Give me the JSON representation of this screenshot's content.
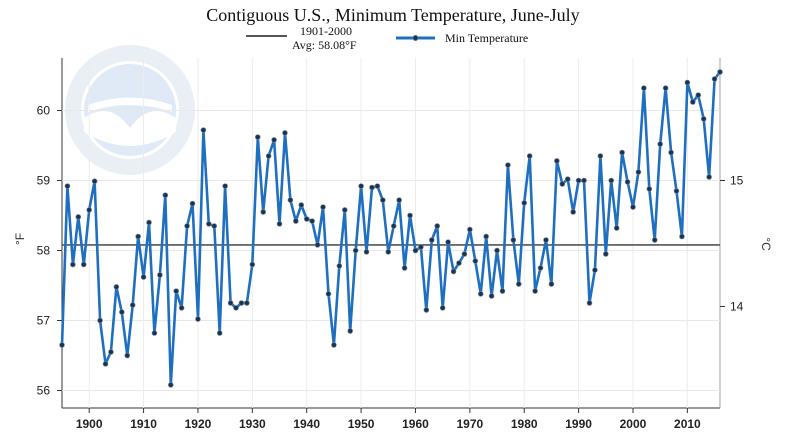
{
  "chart_data": {
    "type": "line",
    "title": "Contiguous U.S., Minimum Temperature, June-July",
    "ylabel_left": "°F",
    "ylabel_right": "°C",
    "xlabel": "",
    "xlim": [
      1895,
      2016
    ],
    "ylim": [
      55.75,
      60.75
    ],
    "x_ticks": [
      1900,
      1910,
      1920,
      1930,
      1940,
      1950,
      1960,
      1970,
      1980,
      1990,
      2000,
      2010
    ],
    "x_tick_labels": [
      "1900",
      "1910",
      "1920",
      "1930",
      "1940",
      "1950",
      "1960",
      "1970",
      "1980",
      "1990",
      "2000",
      "2010"
    ],
    "y_ticks": [
      56,
      57,
      58,
      59,
      60
    ],
    "y_tick_labels": [
      "56",
      "57",
      "58",
      "59",
      "60"
    ],
    "y2_ticks_f": [
      57.2,
      59.0
    ],
    "y2_tick_labels": [
      "14",
      "15"
    ],
    "grid": true,
    "legend": {
      "average_label_line1": "1901-2000",
      "average_label_line2": "Avg: 58.08°F",
      "series_label": "Min Temperature"
    },
    "average": 58.08,
    "colors": {
      "series": "#1f6fc0",
      "average": "#555555",
      "marker": "#1a3350"
    },
    "watermark": "NOAA — National Oceanic and Atmospheric Administration, U.S. Department of Commerce",
    "series": [
      {
        "name": "Min Temperature",
        "x": [
          1895,
          1896,
          1897,
          1898,
          1899,
          1900,
          1901,
          1902,
          1903,
          1904,
          1905,
          1906,
          1907,
          1908,
          1909,
          1910,
          1911,
          1912,
          1913,
          1914,
          1915,
          1916,
          1917,
          1918,
          1919,
          1920,
          1921,
          1922,
          1923,
          1924,
          1925,
          1926,
          1927,
          1928,
          1929,
          1930,
          1931,
          1932,
          1933,
          1934,
          1935,
          1936,
          1937,
          1938,
          1939,
          1940,
          1941,
          1942,
          1943,
          1944,
          1945,
          1946,
          1947,
          1948,
          1949,
          1950,
          1951,
          1952,
          1953,
          1954,
          1955,
          1956,
          1957,
          1958,
          1959,
          1960,
          1961,
          1962,
          1963,
          1964,
          1965,
          1966,
          1967,
          1968,
          1969,
          1970,
          1971,
          1972,
          1973,
          1974,
          1975,
          1976,
          1977,
          1978,
          1979,
          1980,
          1981,
          1982,
          1983,
          1984,
          1985,
          1986,
          1987,
          1988,
          1989,
          1990,
          1991,
          1992,
          1993,
          1994,
          1995,
          1996,
          1997,
          1998,
          1999,
          2000,
          2001,
          2002,
          2003,
          2004,
          2005,
          2006,
          2007,
          2008,
          2009,
          2010,
          2011,
          2012,
          2013,
          2014,
          2015,
          2016
        ],
        "values": [
          56.65,
          58.92,
          57.8,
          58.48,
          57.8,
          58.58,
          58.99,
          57.0,
          56.38,
          56.55,
          57.48,
          57.12,
          56.5,
          57.22,
          58.2,
          57.62,
          58.4,
          56.82,
          57.65,
          58.79,
          56.08,
          57.42,
          57.18,
          58.35,
          58.67,
          57.02,
          59.72,
          58.38,
          58.35,
          56.82,
          58.92,
          57.25,
          57.18,
          57.25,
          57.25,
          57.8,
          59.62,
          58.55,
          59.35,
          59.58,
          58.38,
          59.68,
          58.72,
          58.42,
          58.65,
          58.45,
          58.42,
          58.08,
          58.62,
          57.38,
          56.65,
          57.78,
          58.58,
          56.85,
          58.0,
          58.92,
          57.98,
          58.9,
          58.92,
          58.72,
          57.98,
          58.35,
          58.72,
          57.75,
          58.5,
          58.0,
          58.05,
          57.15,
          58.15,
          58.35,
          57.18,
          58.12,
          57.7,
          57.82,
          57.95,
          58.3,
          57.85,
          57.38,
          58.2,
          57.35,
          58.0,
          57.42,
          59.22,
          58.15,
          57.52,
          58.68,
          59.35,
          57.42,
          57.75,
          58.15,
          57.52,
          59.28,
          58.95,
          59.02,
          58.55,
          59.0,
          59.0,
          57.25,
          57.72,
          59.35,
          57.95,
          59.0,
          58.32,
          59.4,
          58.98,
          58.62,
          59.12,
          60.32,
          58.88,
          58.15,
          59.52,
          60.32,
          59.4,
          58.85,
          58.2,
          60.4,
          60.12,
          60.22,
          59.88,
          59.05,
          60.45,
          60.55
        ]
      }
    ]
  }
}
